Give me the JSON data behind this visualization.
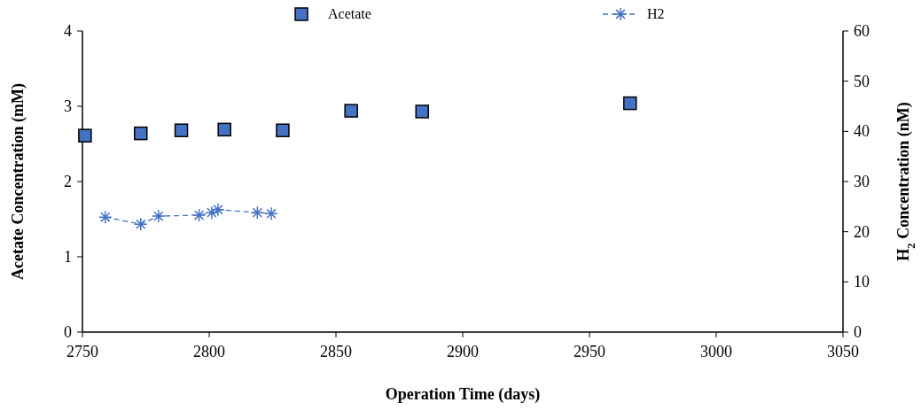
{
  "chart_data": {
    "type": "scatter",
    "xlabel": "Operation Time (days)",
    "ylabel": "Acetate Concentration (mM)",
    "y2label": "H$_{2}$ Concentration (nM)",
    "xlim": [
      2750,
      3050
    ],
    "xticks": [
      2750,
      2800,
      2850,
      2900,
      2950,
      3000,
      3050
    ],
    "ylim": [
      0,
      4
    ],
    "yticks": [
      0,
      1,
      2,
      3,
      4
    ],
    "y2lim": [
      0,
      60
    ],
    "y2ticks": [
      0,
      10,
      20,
      30,
      40,
      50,
      60
    ],
    "legend": "top",
    "grid": false,
    "series": [
      {
        "name": "Acetate",
        "type": "scatter",
        "marker": "square",
        "color": "#4472c4",
        "x": [
          2751,
          2773,
          2789,
          2806,
          2829,
          2856,
          2884,
          2966
        ],
        "values": [
          2.61,
          2.64,
          2.68,
          2.69,
          2.68,
          2.94,
          2.93,
          3.04
        ]
      },
      {
        "name": "H2",
        "type": "line",
        "axis": "y2",
        "marker": "cross",
        "line_style": "dashed",
        "color": "#4472c4",
        "x": [
          2759,
          2773,
          2780,
          2796,
          2801,
          2803.5,
          2819,
          2824.5
        ],
        "values": [
          22.9,
          21.5,
          23.1,
          23.3,
          23.8,
          24.4,
          23.8,
          23.6
        ]
      }
    ]
  }
}
